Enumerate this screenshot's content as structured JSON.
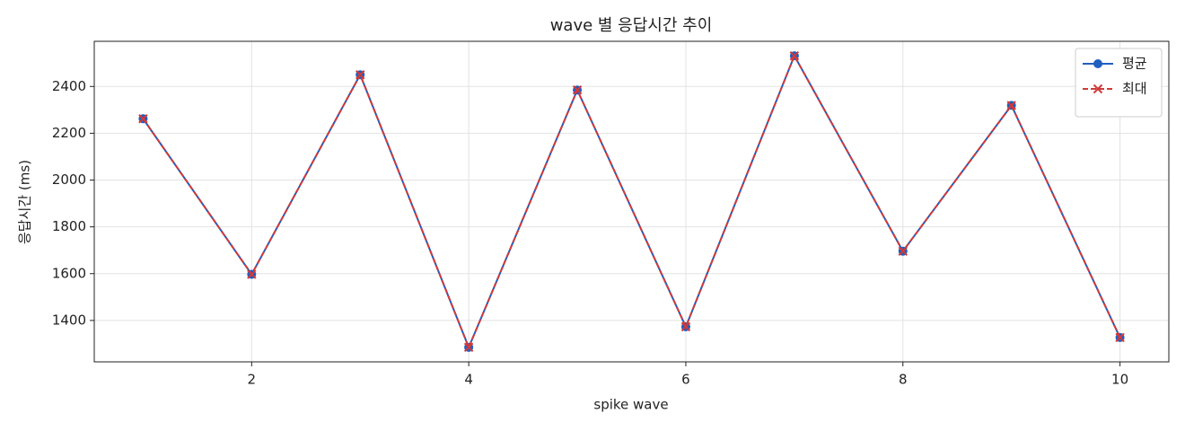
{
  "chart_data": {
    "type": "line",
    "title": "wave 별 응답시간 추이",
    "x_label": "spike wave",
    "y_label": "응답시간 (ms)",
    "x": [
      1,
      2,
      3,
      4,
      5,
      6,
      7,
      8,
      9,
      10
    ],
    "series": [
      {
        "name": "평균",
        "color": "#1f5fbf",
        "marker": "o",
        "dash": false,
        "values": [
          2262,
          1597,
          2450,
          1285,
          2385,
          1373,
          2531,
          1696,
          2319,
          1327
        ]
      },
      {
        "name": "최대",
        "color": "#d13a3a",
        "marker": "x",
        "dash": true,
        "values": [
          2262,
          1597,
          2450,
          1285,
          2385,
          1373,
          2531,
          1696,
          2319,
          1327
        ]
      }
    ],
    "xlim": [
      0.55,
      10.45
    ],
    "ylim": [
      1223,
      2593
    ],
    "xticks": [
      2,
      4,
      6,
      8,
      10
    ],
    "yticks": [
      1400,
      1600,
      1800,
      2000,
      2200,
      2400
    ],
    "grid": true,
    "legend": "upper right"
  }
}
